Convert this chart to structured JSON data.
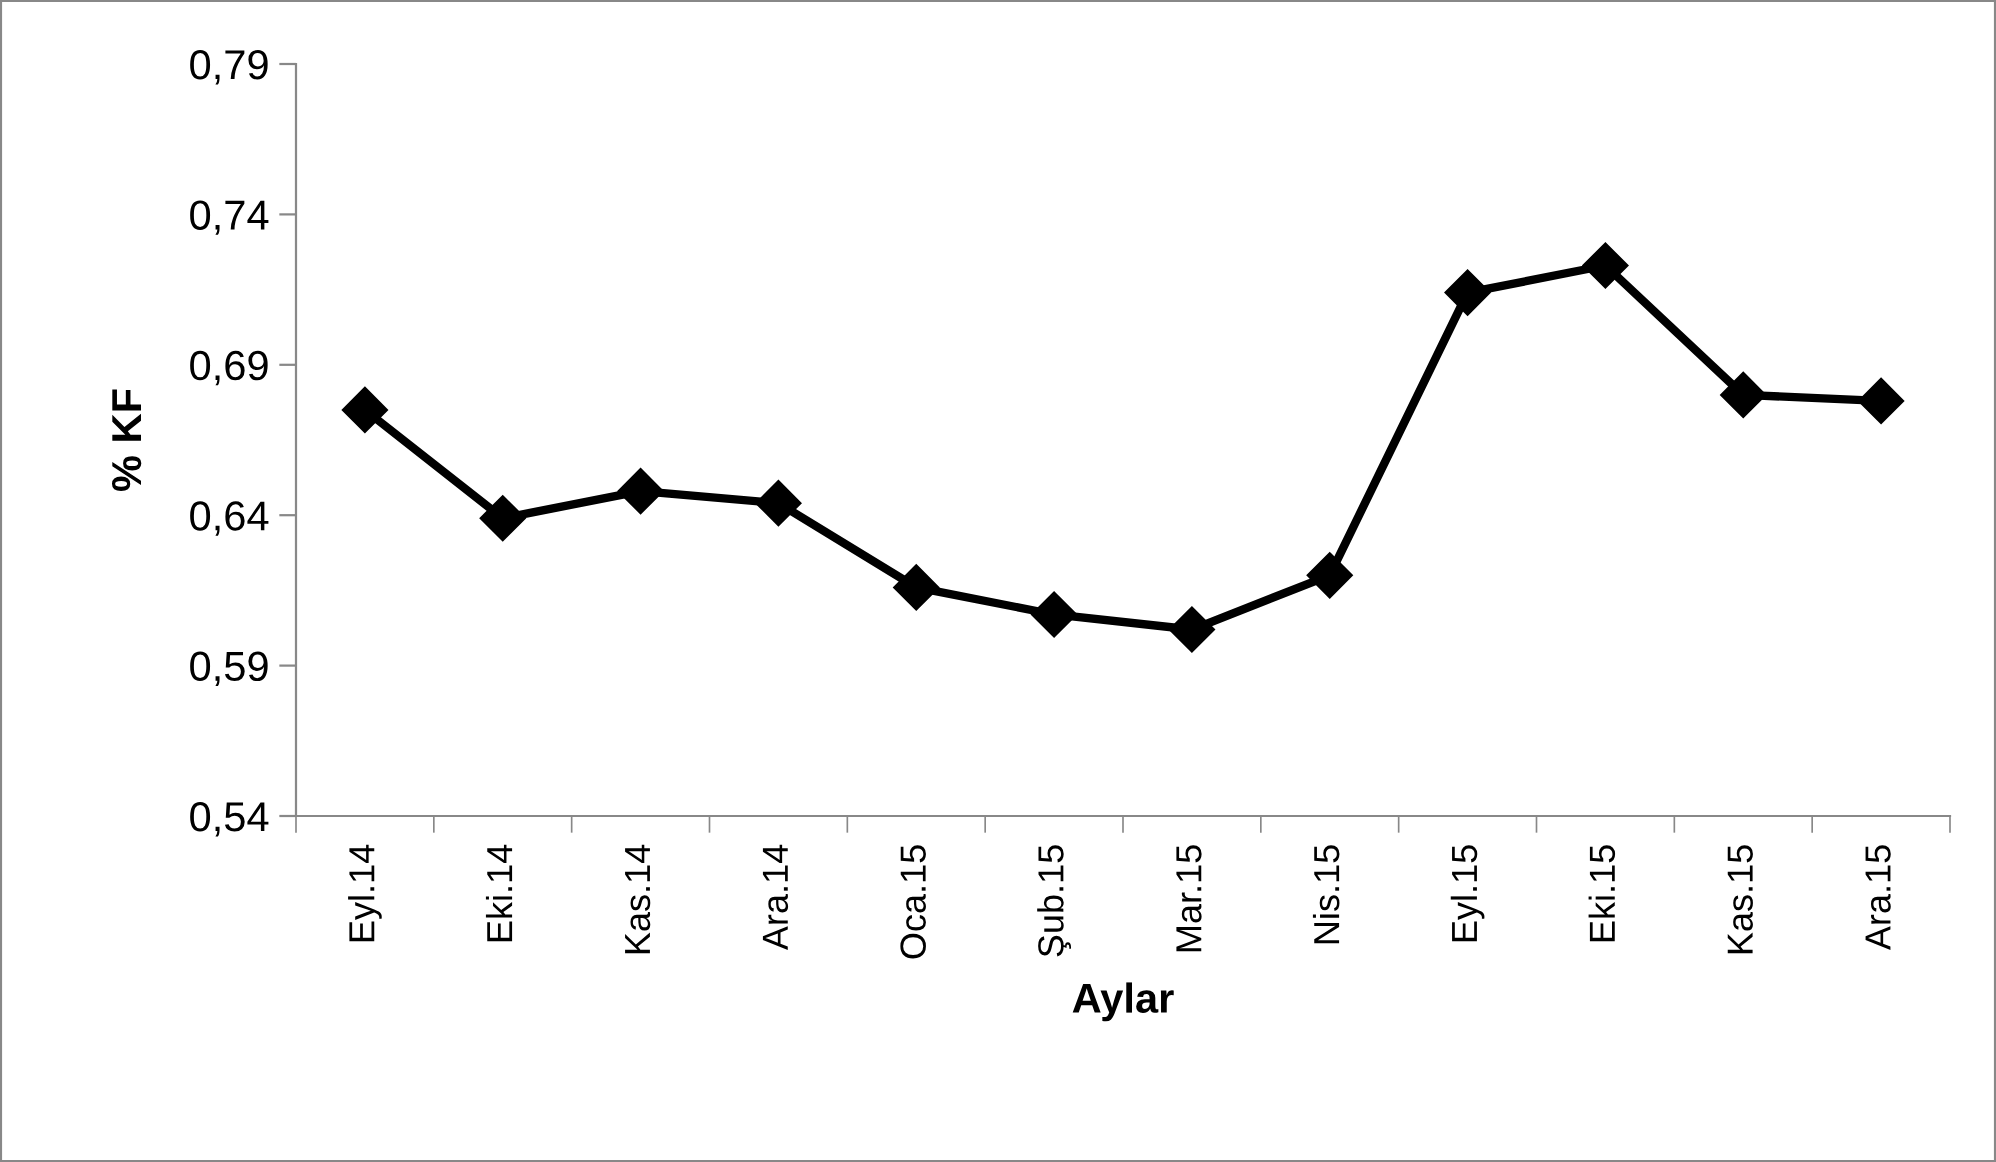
{
  "chart_data": {
    "type": "line",
    "xlabel": "Aylar",
    "ylabel": "% KF",
    "categories": [
      "Eyl.14",
      "Eki.14",
      "Kas.14",
      "Ara.14",
      "Oca.15",
      "Şub.15",
      "Mar.15",
      "Nis.15",
      "Eyl.15",
      "Eki.15",
      "Kas.15",
      "Ara.15"
    ],
    "series": [
      {
        "color": "#000000",
        "values": [
          0.675,
          0.639,
          0.648,
          0.644,
          0.616,
          0.607,
          0.602,
          0.62,
          0.714,
          0.723,
          0.68,
          0.678
        ]
      }
    ],
    "ylim": [
      0.54,
      0.79
    ],
    "yticks": [
      {
        "value": 0.54,
        "label": "0,54"
      },
      {
        "value": 0.59,
        "label": "0,59"
      },
      {
        "value": 0.64,
        "label": "0,64"
      },
      {
        "value": 0.69,
        "label": "0,69"
      },
      {
        "value": 0.74,
        "label": "0,74"
      },
      {
        "value": 0.79,
        "label": "0,79"
      }
    ],
    "grid": false,
    "legend": false,
    "marker": "diamond",
    "line_style": "solid"
  }
}
